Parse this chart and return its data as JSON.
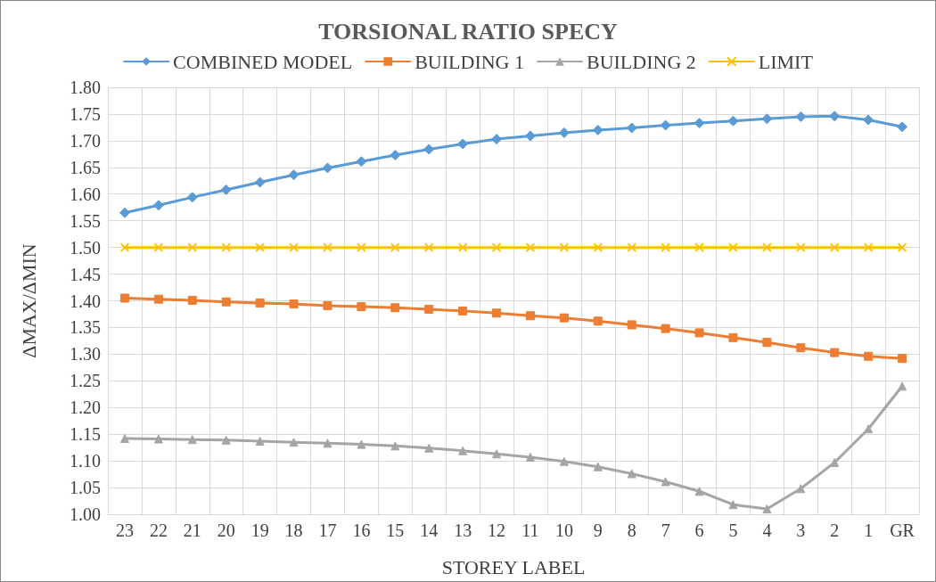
{
  "chart_data": {
    "type": "line",
    "title": "TORSIONAL RATIO SPECY",
    "xlabel": "STOREY LABEL",
    "ylabel": "ΔMAX/ΔMIN",
    "categories": [
      "23",
      "22",
      "21",
      "20",
      "19",
      "18",
      "17",
      "16",
      "15",
      "14",
      "13",
      "12",
      "11",
      "10",
      "9",
      "8",
      "7",
      "6",
      "5",
      "4",
      "3",
      "2",
      "1",
      "GR"
    ],
    "series": [
      {
        "name": "COMBINED MODEL",
        "color": "#5b9bd5",
        "marker": "diamond",
        "values": [
          1.565,
          1.579,
          1.594,
          1.608,
          1.622,
          1.636,
          1.649,
          1.661,
          1.673,
          1.684,
          1.694,
          1.703,
          1.709,
          1.715,
          1.72,
          1.724,
          1.729,
          1.733,
          1.737,
          1.741,
          1.745,
          1.746,
          1.739,
          1.726
        ]
      },
      {
        "name": "BUILDING 1",
        "color": "#ed7d31",
        "marker": "square",
        "values": [
          1.405,
          1.403,
          1.401,
          1.398,
          1.396,
          1.394,
          1.391,
          1.389,
          1.387,
          1.384,
          1.381,
          1.377,
          1.372,
          1.368,
          1.362,
          1.355,
          1.348,
          1.34,
          1.331,
          1.322,
          1.312,
          1.303,
          1.296,
          1.292
        ]
      },
      {
        "name": "BUILDING 2",
        "color": "#a5a5a5",
        "marker": "triangle",
        "values": [
          1.142,
          1.141,
          1.14,
          1.139,
          1.137,
          1.135,
          1.133,
          1.131,
          1.128,
          1.124,
          1.119,
          1.113,
          1.107,
          1.099,
          1.089,
          1.076,
          1.061,
          1.043,
          1.018,
          1.01,
          1.048,
          1.097,
          1.16,
          1.24
        ]
      },
      {
        "name": "LIMIT",
        "color": "#ffc000",
        "marker": "cross",
        "values": [
          1.5,
          1.5,
          1.5,
          1.5,
          1.5,
          1.5,
          1.5,
          1.5,
          1.5,
          1.5,
          1.5,
          1.5,
          1.5,
          1.5,
          1.5,
          1.5,
          1.5,
          1.5,
          1.5,
          1.5,
          1.5,
          1.5,
          1.5,
          1.5
        ]
      }
    ],
    "ylim": [
      1.0,
      1.8
    ],
    "yticks": [
      {
        "value": 1.0,
        "label": "1.00"
      },
      {
        "value": 1.05,
        "label": "1.05"
      },
      {
        "value": 1.1,
        "label": "1.10"
      },
      {
        "value": 1.15,
        "label": "1.15"
      },
      {
        "value": 1.2,
        "label": "1.20"
      },
      {
        "value": 1.25,
        "label": "1.25"
      },
      {
        "value": 1.3,
        "label": "1.30"
      },
      {
        "value": 1.35,
        "label": "1.35"
      },
      {
        "value": 1.4,
        "label": "1.40"
      },
      {
        "value": 1.45,
        "label": "1.45"
      },
      {
        "value": 1.5,
        "label": "1.50"
      },
      {
        "value": 1.55,
        "label": "1.55"
      },
      {
        "value": 1.6,
        "label": "1.60"
      },
      {
        "value": 1.65,
        "label": "1.65"
      },
      {
        "value": 1.7,
        "label": "1.70"
      },
      {
        "value": 1.75,
        "label": "1.75"
      },
      {
        "value": 1.8,
        "label": "1.80"
      }
    ],
    "grid": true,
    "legend": "top",
    "line_style": "solid"
  }
}
